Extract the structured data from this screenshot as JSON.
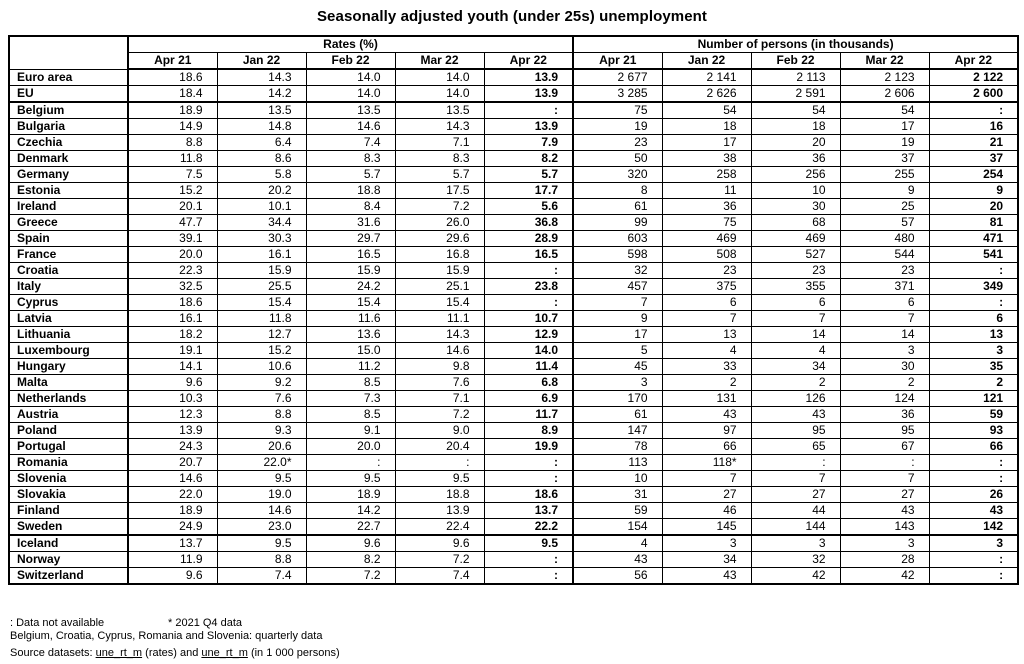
{
  "title": "Seasonally adjusted youth (under 25s) unemployment",
  "colors": {
    "text": "#000000",
    "border": "#000000",
    "background": "#ffffff"
  },
  "table": {
    "group_headers": [
      "Rates (%)",
      "Number of persons (in thousands)"
    ],
    "month_headers": [
      "Apr 21",
      "Jan 22",
      "Feb 22",
      "Mar 22",
      "Apr 22"
    ],
    "rows": [
      {
        "country": "Euro area",
        "rates": [
          "18.6",
          "14.3",
          "14.0",
          "14.0",
          "13.9"
        ],
        "persons": [
          "2 677",
          "2 141",
          "2 113",
          "2 123",
          "2 122"
        ]
      },
      {
        "country": "EU",
        "rates": [
          "18.4",
          "14.2",
          "14.0",
          "14.0",
          "13.9"
        ],
        "persons": [
          "3 285",
          "2 626",
          "2 591",
          "2 606",
          "2 600"
        ]
      },
      {
        "country": "Belgium",
        "rates": [
          "18.9",
          "13.5",
          "13.5",
          "13.5",
          ":"
        ],
        "persons": [
          "75",
          "54",
          "54",
          "54",
          ":"
        ]
      },
      {
        "country": "Bulgaria",
        "rates": [
          "14.9",
          "14.8",
          "14.6",
          "14.3",
          "13.9"
        ],
        "persons": [
          "19",
          "18",
          "18",
          "17",
          "16"
        ]
      },
      {
        "country": "Czechia",
        "rates": [
          "8.8",
          "6.4",
          "7.4",
          "7.1",
          "7.9"
        ],
        "persons": [
          "23",
          "17",
          "20",
          "19",
          "21"
        ]
      },
      {
        "country": "Denmark",
        "rates": [
          "11.8",
          "8.6",
          "8.3",
          "8.3",
          "8.2"
        ],
        "persons": [
          "50",
          "38",
          "36",
          "37",
          "37"
        ]
      },
      {
        "country": "Germany",
        "rates": [
          "7.5",
          "5.8",
          "5.7",
          "5.7",
          "5.7"
        ],
        "persons": [
          "320",
          "258",
          "256",
          "255",
          "254"
        ]
      },
      {
        "country": "Estonia",
        "rates": [
          "15.2",
          "20.2",
          "18.8",
          "17.5",
          "17.7"
        ],
        "persons": [
          "8",
          "11",
          "10",
          "9",
          "9"
        ]
      },
      {
        "country": "Ireland",
        "rates": [
          "20.1",
          "10.1",
          "8.4",
          "7.2",
          "5.6"
        ],
        "persons": [
          "61",
          "36",
          "30",
          "25",
          "20"
        ]
      },
      {
        "country": "Greece",
        "rates": [
          "47.7",
          "34.4",
          "31.6",
          "26.0",
          "36.8"
        ],
        "persons": [
          "99",
          "75",
          "68",
          "57",
          "81"
        ]
      },
      {
        "country": "Spain",
        "rates": [
          "39.1",
          "30.3",
          "29.7",
          "29.6",
          "28.9"
        ],
        "persons": [
          "603",
          "469",
          "469",
          "480",
          "471"
        ]
      },
      {
        "country": "France",
        "rates": [
          "20.0",
          "16.1",
          "16.5",
          "16.8",
          "16.5"
        ],
        "persons": [
          "598",
          "508",
          "527",
          "544",
          "541"
        ]
      },
      {
        "country": "Croatia",
        "rates": [
          "22.3",
          "15.9",
          "15.9",
          "15.9",
          ":"
        ],
        "persons": [
          "32",
          "23",
          "23",
          "23",
          ":"
        ]
      },
      {
        "country": "Italy",
        "rates": [
          "32.5",
          "25.5",
          "24.2",
          "25.1",
          "23.8"
        ],
        "persons": [
          "457",
          "375",
          "355",
          "371",
          "349"
        ]
      },
      {
        "country": "Cyprus",
        "rates": [
          "18.6",
          "15.4",
          "15.4",
          "15.4",
          ":"
        ],
        "persons": [
          "7",
          "6",
          "6",
          "6",
          ":"
        ]
      },
      {
        "country": "Latvia",
        "rates": [
          "16.1",
          "11.8",
          "11.6",
          "11.1",
          "10.7"
        ],
        "persons": [
          "9",
          "7",
          "7",
          "7",
          "6"
        ]
      },
      {
        "country": "Lithuania",
        "rates": [
          "18.2",
          "12.7",
          "13.6",
          "14.3",
          "12.9"
        ],
        "persons": [
          "17",
          "13",
          "14",
          "14",
          "13"
        ]
      },
      {
        "country": "Luxembourg",
        "rates": [
          "19.1",
          "15.2",
          "15.0",
          "14.6",
          "14.0"
        ],
        "persons": [
          "5",
          "4",
          "4",
          "3",
          "3"
        ]
      },
      {
        "country": "Hungary",
        "rates": [
          "14.1",
          "10.6",
          "11.2",
          "9.8",
          "11.4"
        ],
        "persons": [
          "45",
          "33",
          "34",
          "30",
          "35"
        ]
      },
      {
        "country": "Malta",
        "rates": [
          "9.6",
          "9.2",
          "8.5",
          "7.6",
          "6.8"
        ],
        "persons": [
          "3",
          "2",
          "2",
          "2",
          "2"
        ]
      },
      {
        "country": "Netherlands",
        "rates": [
          "10.3",
          "7.6",
          "7.3",
          "7.1",
          "6.9"
        ],
        "persons": [
          "170",
          "131",
          "126",
          "124",
          "121"
        ]
      },
      {
        "country": "Austria",
        "rates": [
          "12.3",
          "8.8",
          "8.5",
          "7.2",
          "11.7"
        ],
        "persons": [
          "61",
          "43",
          "43",
          "36",
          "59"
        ]
      },
      {
        "country": "Poland",
        "rates": [
          "13.9",
          "9.3",
          "9.1",
          "9.0",
          "8.9"
        ],
        "persons": [
          "147",
          "97",
          "95",
          "95",
          "93"
        ]
      },
      {
        "country": "Portugal",
        "rates": [
          "24.3",
          "20.6",
          "20.0",
          "20.4",
          "19.9"
        ],
        "persons": [
          "78",
          "66",
          "65",
          "67",
          "66"
        ]
      },
      {
        "country": "Romania",
        "rates": [
          "20.7",
          "22.0*",
          ":",
          ":",
          ":"
        ],
        "persons": [
          "113",
          "118*",
          ":",
          ":",
          ":"
        ]
      },
      {
        "country": "Slovenia",
        "rates": [
          "14.6",
          "9.5",
          "9.5",
          "9.5",
          ":"
        ],
        "persons": [
          "10",
          "7",
          "7",
          "7",
          ":"
        ]
      },
      {
        "country": "Slovakia",
        "rates": [
          "22.0",
          "19.0",
          "18.9",
          "18.8",
          "18.6"
        ],
        "persons": [
          "31",
          "27",
          "27",
          "27",
          "26"
        ]
      },
      {
        "country": "Finland",
        "rates": [
          "18.9",
          "14.6",
          "14.2",
          "13.9",
          "13.7"
        ],
        "persons": [
          "59",
          "46",
          "44",
          "43",
          "43"
        ]
      },
      {
        "country": "Sweden",
        "rates": [
          "24.9",
          "23.0",
          "22.7",
          "22.4",
          "22.2"
        ],
        "persons": [
          "154",
          "145",
          "144",
          "143",
          "142"
        ]
      },
      {
        "country": "Iceland",
        "rates": [
          "13.7",
          "9.5",
          "9.6",
          "9.6",
          "9.5"
        ],
        "persons": [
          "4",
          "3",
          "3",
          "3",
          "3"
        ]
      },
      {
        "country": "Norway",
        "rates": [
          "11.9",
          "8.8",
          "8.2",
          "7.2",
          ":"
        ],
        "persons": [
          "43",
          "34",
          "32",
          "28",
          ":"
        ]
      },
      {
        "country": "Switzerland",
        "rates": [
          "9.6",
          "7.4",
          "7.2",
          "7.4",
          ":"
        ],
        "persons": [
          "56",
          "43",
          "42",
          "42",
          ":"
        ]
      }
    ]
  },
  "footnotes": {
    "not_available": ": Data not available",
    "q4": "* 2021 Q4 data",
    "quarterly": "Belgium, Croatia, Cyprus, Romania and Slovenia: quarterly data",
    "source_prefix": "Source datasets: ",
    "dataset_rates": "une_rt_m",
    "source_mid": " (rates) and ",
    "dataset_persons": "une_rt_m",
    "source_suffix": "  (in 1 000 persons)"
  }
}
